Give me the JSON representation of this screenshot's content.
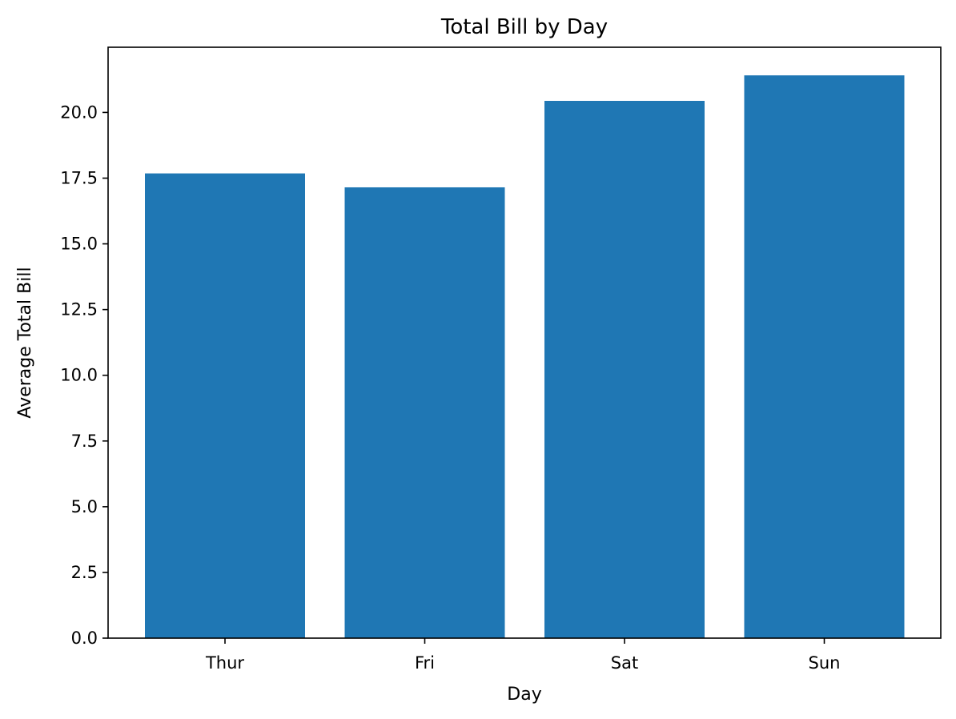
{
  "chart_data": {
    "type": "bar",
    "title": "Total Bill by Day",
    "xlabel": "Day",
    "ylabel": "Average Total Bill",
    "categories": [
      "Thur",
      "Fri",
      "Sat",
      "Sun"
    ],
    "values": [
      17.68,
      17.15,
      20.44,
      21.41
    ],
    "ylim": [
      0,
      22.48
    ],
    "yticks": [
      0,
      2.5,
      5,
      7.5,
      10,
      12.5,
      15,
      17.5,
      20
    ],
    "ytick_labels": [
      "0.0",
      "2.5",
      "5.0",
      "7.5",
      "10.0",
      "12.5",
      "15.0",
      "17.5",
      "20.0"
    ],
    "bar_color": "#1f77b4",
    "grid": false,
    "legend": "none"
  }
}
